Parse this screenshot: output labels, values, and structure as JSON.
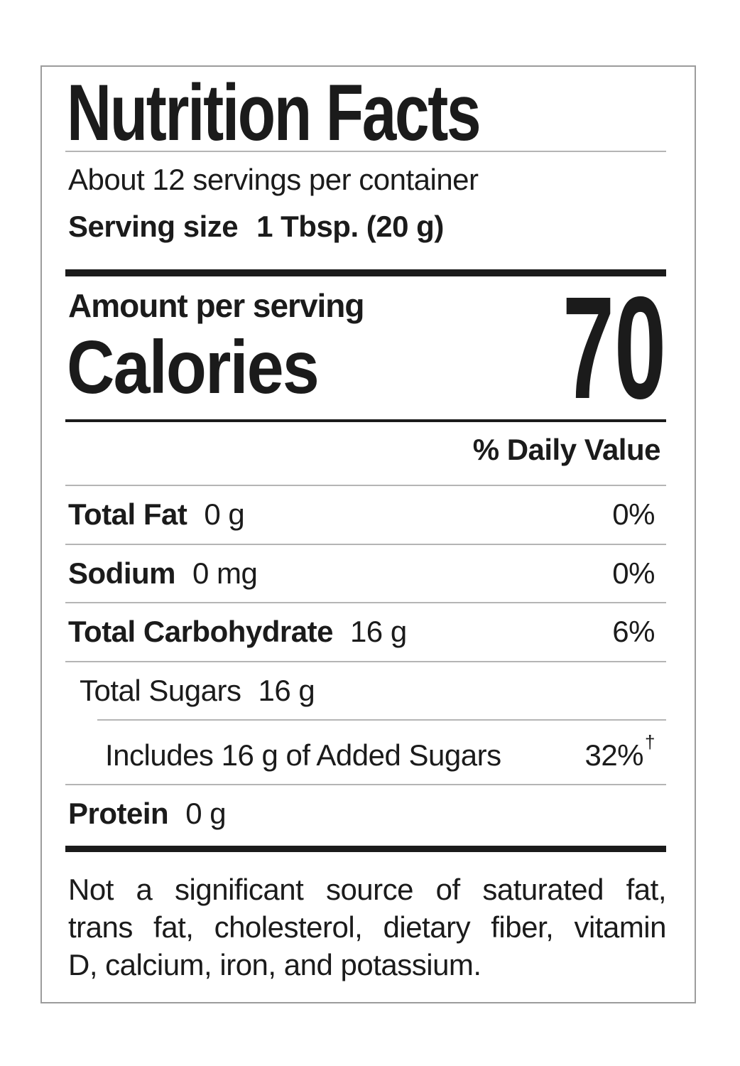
{
  "label": {
    "title": "Nutrition Facts",
    "servings_per_container": "About 12 servings per container",
    "serving_size_label": "Serving size",
    "serving_size_value": "1 Tbsp. (20 g)",
    "amount_per_serving": "Amount per serving",
    "calories_label": "Calories",
    "calories_value": "70",
    "daily_value_header": "% Daily Value",
    "rows": [
      {
        "name": "Total Fat",
        "amount": "0 g",
        "dv": "0%",
        "dv_mark": ""
      },
      {
        "name": "Sodium",
        "amount": "0 mg",
        "dv": "0%",
        "dv_mark": ""
      },
      {
        "name": "Total Carbohydrate",
        "amount": "16 g",
        "dv": "6%",
        "dv_mark": ""
      },
      {
        "name": "Total Sugars",
        "amount": "16 g",
        "dv": "",
        "dv_mark": ""
      },
      {
        "name": "Includes 16 g of Added Sugars",
        "amount": "",
        "dv": "32%",
        "dv_mark": "†"
      },
      {
        "name": "Protein",
        "amount": "0 g",
        "dv": "",
        "dv_mark": ""
      }
    ],
    "footnote_lines": [
      "Not a significant source of saturated fat,",
      "trans fat, cholesterol, dietary fiber, vitamin",
      "D, calcium, iron, and potassium."
    ],
    "colors": {
      "text": "#1b1b1b",
      "hairline": "#b5b5b5",
      "border": "#9c9c9c"
    }
  }
}
